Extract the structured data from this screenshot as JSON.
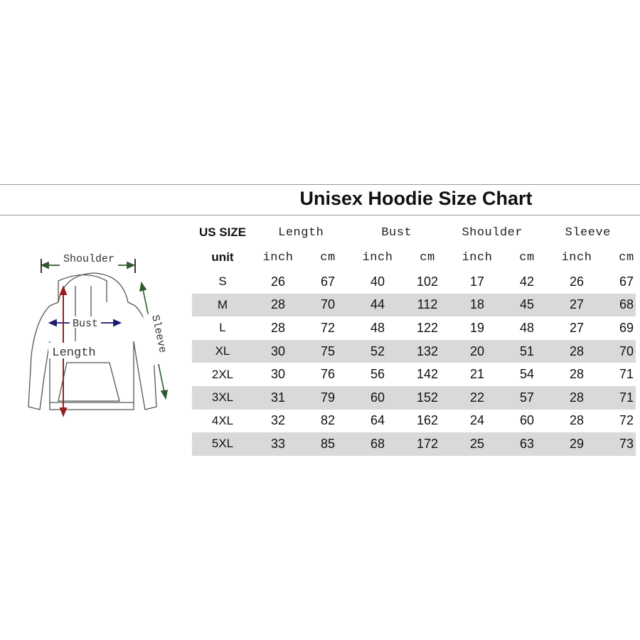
{
  "title": "Unisex Hoodie Size Chart",
  "diagram": {
    "shoulder": "Shoulder",
    "bust": "Bust",
    "length": "Length",
    "sleeve": "Sleeve",
    "colors": {
      "shoulder": "#2f5a2f",
      "bust": "#1a1a6e",
      "length": "#9b1c1c",
      "sleeve": "#2f5a2f"
    }
  },
  "table": {
    "size_header": "US SIZE",
    "unit_header": "unit",
    "groups": [
      "Length",
      "Bust",
      "Shoulder",
      "Sleeve"
    ],
    "units": [
      "inch",
      "cm",
      "inch",
      "cm",
      "inch",
      "cm",
      "inch",
      "cm"
    ],
    "shade_color": "#d9d9d9",
    "rows": [
      {
        "size": "S",
        "values": [
          "26",
          "67",
          "40",
          "102",
          "17",
          "42",
          "26",
          "67"
        ]
      },
      {
        "size": "M",
        "values": [
          "28",
          "70",
          "44",
          "112",
          "18",
          "45",
          "27",
          "68"
        ]
      },
      {
        "size": "L",
        "values": [
          "28",
          "72",
          "48",
          "122",
          "19",
          "48",
          "27",
          "69"
        ]
      },
      {
        "size": "XL",
        "values": [
          "30",
          "75",
          "52",
          "132",
          "20",
          "51",
          "28",
          "70"
        ]
      },
      {
        "size": "2XL",
        "values": [
          "30",
          "76",
          "56",
          "142",
          "21",
          "54",
          "28",
          "71"
        ]
      },
      {
        "size": "3XL",
        "values": [
          "31",
          "79",
          "60",
          "152",
          "22",
          "57",
          "28",
          "71"
        ]
      },
      {
        "size": "4XL",
        "values": [
          "32",
          "82",
          "64",
          "162",
          "24",
          "60",
          "28",
          "72"
        ]
      },
      {
        "size": "5XL",
        "values": [
          "33",
          "85",
          "68",
          "172",
          "25",
          "63",
          "29",
          "73"
        ]
      }
    ]
  }
}
